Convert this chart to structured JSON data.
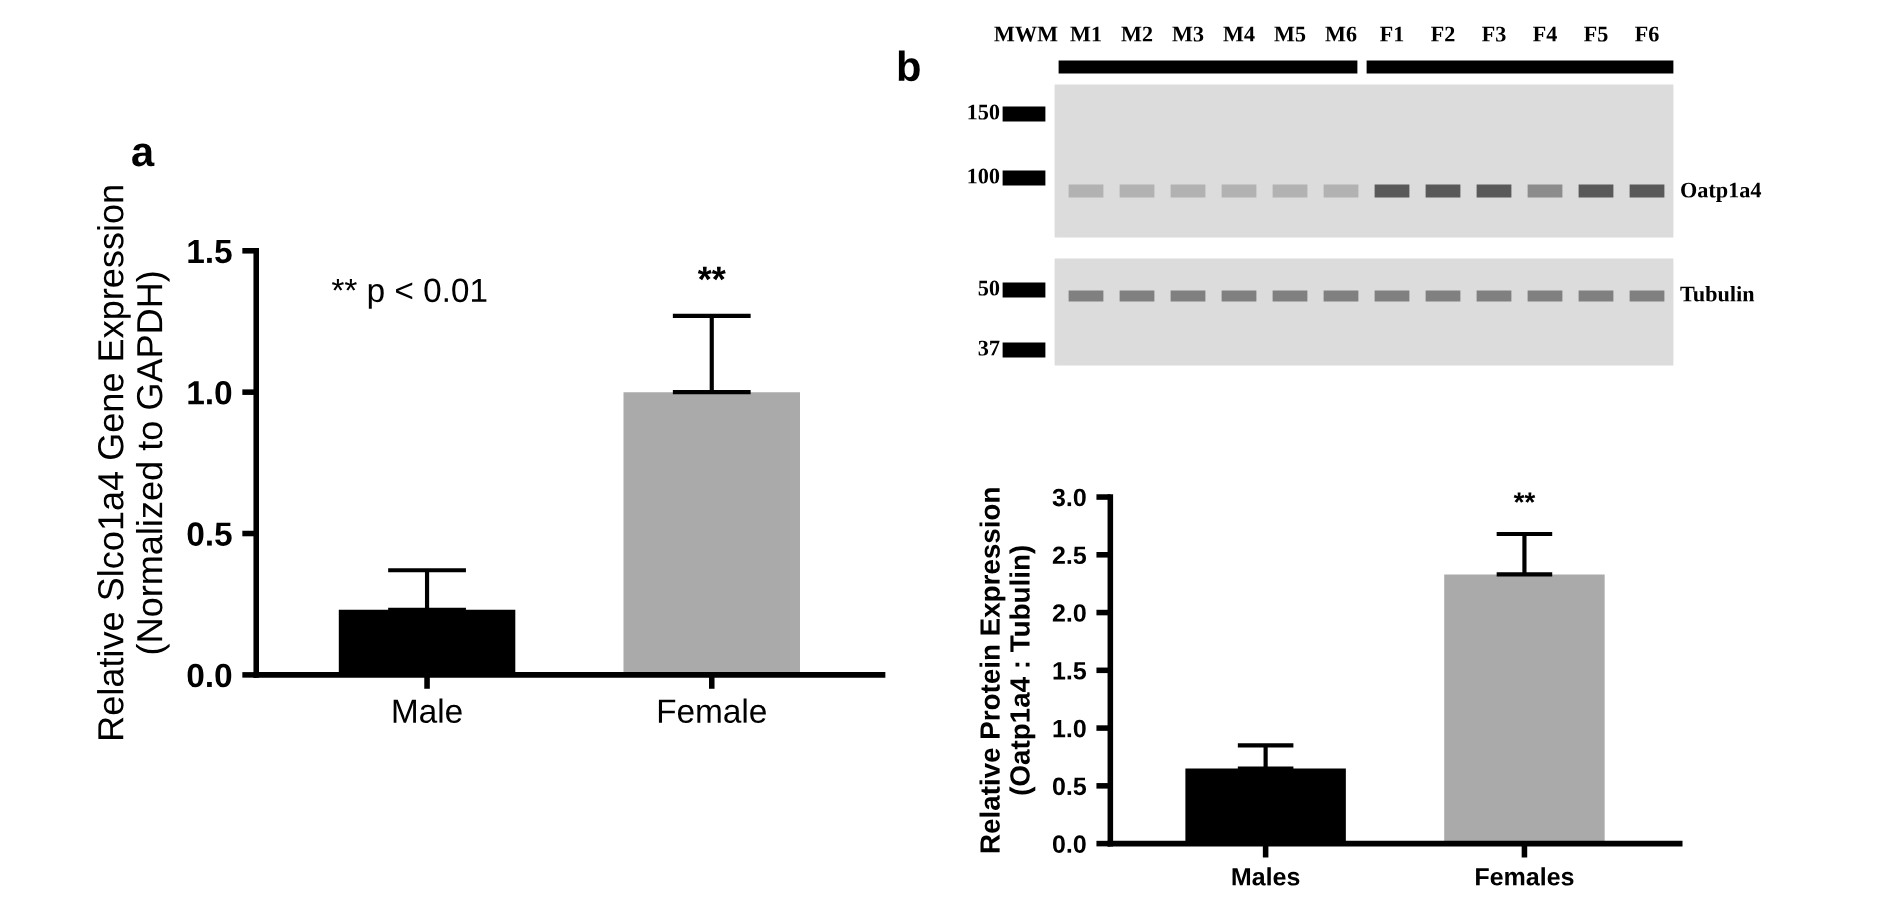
{
  "chart_data": [
    {
      "type": "bar",
      "title": "a",
      "ylabel": "Relative Slco1a4 Gene Expression\n(Normalized to GAPDH)",
      "categories": [
        "Male",
        "Female"
      ],
      "values": [
        0.23,
        1.0
      ],
      "colors": [
        "#000000",
        "#aaaaaa"
      ],
      "errors": [
        [
          0.23,
          0.37
        ],
        [
          1.0,
          1.27
        ]
      ],
      "ylim": [
        0,
        1.5
      ],
      "yticks": [
        {
          "value": 0,
          "label": "0.0"
        },
        {
          "value": 0.5,
          "label": "0.5"
        },
        {
          "value": 1,
          "label": "1.0"
        },
        {
          "value": 1.5,
          "label": "1.5"
        }
      ],
      "annotations": [
        "** p < 0.01",
        "**"
      ]
    },
    {
      "type": "other",
      "title": "b",
      "annotations": [
        "MWM",
        "M1",
        "M2",
        "M3",
        "M4",
        "M5",
        "M6",
        "F1",
        "F2",
        "F3",
        "F4",
        "F5",
        "F6",
        "150",
        "100",
        "50",
        "37",
        "Oatp1a4",
        "Tubulin"
      ]
    },
    {
      "type": "bar",
      "ylabel": "Relative Protein Expression\n(Oatp1a4 : Tubulin)",
      "categories": [
        "Males",
        "Females"
      ],
      "values": [
        0.65,
        2.33
      ],
      "colors": [
        "#000000",
        "#aaaaaa"
      ],
      "errors": [
        [
          0.65,
          0.85
        ],
        [
          2.33,
          2.68
        ]
      ],
      "ylim": [
        0,
        3
      ],
      "yticks": [
        {
          "value": 0,
          "label": "0.0"
        },
        {
          "value": 0.5,
          "label": "0.5"
        },
        {
          "value": 1,
          "label": "1.0"
        },
        {
          "value": 1.5,
          "label": "1.5"
        },
        {
          "value": 2,
          "label": "2.0"
        },
        {
          "value": 2.5,
          "label": "2.5"
        },
        {
          "value": 3,
          "label": "3.0"
        }
      ],
      "annotations": [
        "**"
      ]
    }
  ]
}
